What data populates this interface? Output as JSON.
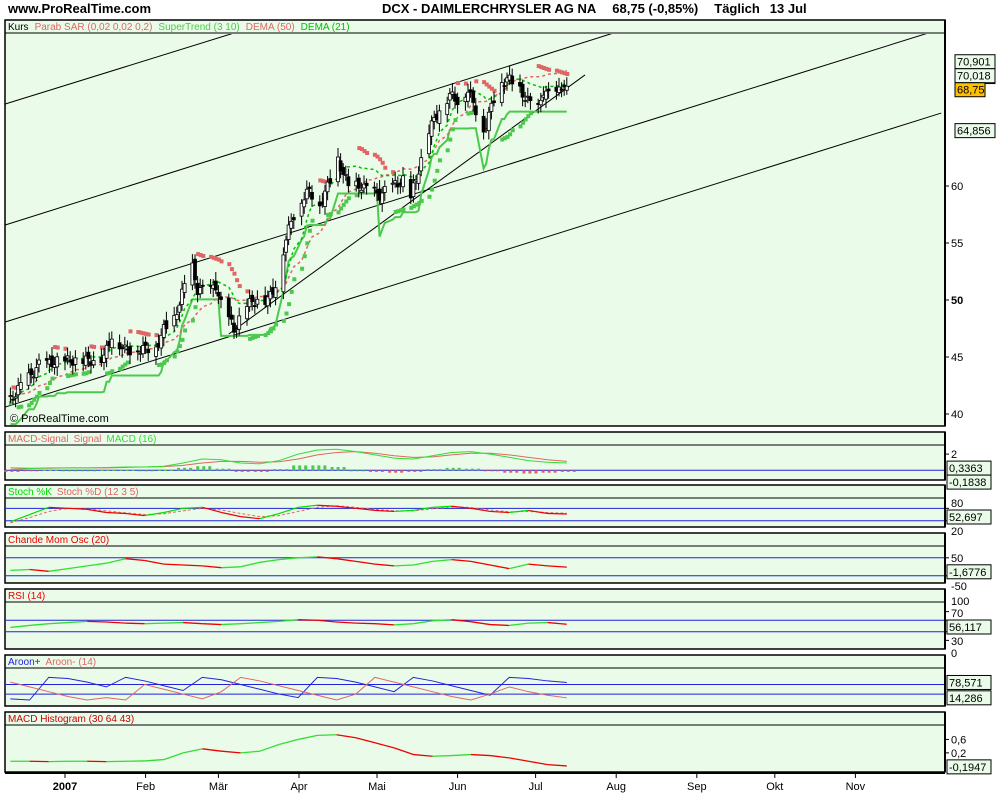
{
  "header": {
    "site": "www.ProRealTime.com",
    "title": "DCX - DAIMLERCHRYSLER AG NA",
    "quote": "68,75 (-0,85%)",
    "period": "Täglich",
    "date": "13 Jul"
  },
  "watermark": "© ProRealTime.com",
  "colors": {
    "panel_bg": "#eafbe9",
    "green": "#4cc94c",
    "dema21": "#00c000",
    "red": "#e06666",
    "blue": "#2222dd",
    "last_price_bg": "#ffc000"
  },
  "main_panel": {
    "legend": [
      {
        "text": "Kurs",
        "color": "#000000"
      },
      {
        "text": "Parab SAR (0,02 0,02 0,2)",
        "color": "#e06666"
      },
      {
        "text": "SuperTrend (3 10)",
        "color": "#4cc94c"
      },
      {
        "text": "DEMA (50)",
        "color": "#e06666"
      },
      {
        "text": "DEMA (21)",
        "color": "#00c000"
      }
    ],
    "y_ticks": [
      {
        "value": 60,
        "label": "60"
      },
      {
        "value": 55,
        "label": "55"
      },
      {
        "value": 50,
        "label": "50",
        "bold": true
      },
      {
        "value": 45,
        "label": "45"
      },
      {
        "value": 40,
        "label": "40"
      }
    ],
    "value_labels": [
      {
        "value": 70.901,
        "label": "70,901",
        "color": "#e06666"
      },
      {
        "value": 70.018,
        "label": "70,018",
        "color": "#e06666"
      },
      {
        "value": 69.6,
        "label": "",
        "color": "#00c000"
      },
      {
        "value": 68.75,
        "label": "68,75",
        "color": "#000000",
        "highlight": true
      },
      {
        "value": 64.856,
        "label": "64,856",
        "color": "#4cc94c"
      }
    ]
  },
  "x_axis": {
    "ticks": [
      {
        "date": "2007-01-01",
        "label": "2007",
        "bold": true
      },
      {
        "date": "2007-02-01",
        "label": "Feb"
      },
      {
        "date": "2007-03-01",
        "label": "Mär"
      },
      {
        "date": "2007-04-01",
        "label": "Apr"
      },
      {
        "date": "2007-05-01",
        "label": "Mai"
      },
      {
        "date": "2007-06-01",
        "label": "Jun"
      },
      {
        "date": "2007-07-01",
        "label": "Jul"
      },
      {
        "date": "2007-08-01",
        "label": "Aug"
      },
      {
        "date": "2007-09-01",
        "label": "Sep"
      },
      {
        "date": "2007-10-01",
        "label": "Okt"
      },
      {
        "date": "2007-11-01",
        "label": "Nov"
      }
    ]
  },
  "chart_data": [
    {
      "type": "candlestick",
      "name": "Kurs",
      "ylim": [
        39,
        73.5
      ],
      "xlim": [
        "2006-12-09",
        "2007-12-04"
      ],
      "grid": false,
      "close": [
        [
          "2006-12-11",
          41.2
        ],
        [
          "2006-12-15",
          42.5
        ],
        [
          "2006-12-19",
          43.4
        ],
        [
          "2006-12-22",
          44.3
        ],
        [
          "2006-12-29",
          44.6
        ],
        [
          "2007-01-05",
          44.7
        ],
        [
          "2007-01-11",
          44.7
        ],
        [
          "2007-01-16",
          45.0
        ],
        [
          "2007-01-19",
          46.9
        ],
        [
          "2007-01-24",
          45.6
        ],
        [
          "2007-01-30",
          45.7
        ],
        [
          "2007-02-05",
          45.8
        ],
        [
          "2007-02-08",
          47.4
        ],
        [
          "2007-02-12",
          48.3
        ],
        [
          "2007-02-16",
          51.3
        ],
        [
          "2007-02-19",
          52.8
        ],
        [
          "2007-02-21",
          50.9
        ],
        [
          "2007-02-26",
          50.9
        ],
        [
          "2007-02-28",
          51.3
        ],
        [
          "2007-03-02",
          49.6
        ],
        [
          "2007-03-05",
          48.4
        ],
        [
          "2007-03-07",
          47.4
        ],
        [
          "2007-03-12",
          49.6
        ],
        [
          "2007-03-16",
          50.0
        ],
        [
          "2007-03-20",
          50.0
        ],
        [
          "2007-03-23",
          51.3
        ],
        [
          "2007-03-26",
          54.4
        ],
        [
          "2007-03-29",
          57.0
        ],
        [
          "2007-04-02",
          58.8
        ],
        [
          "2007-04-05",
          59.6
        ],
        [
          "2007-04-09",
          58.3
        ],
        [
          "2007-04-13",
          60.5
        ],
        [
          "2007-04-16",
          62.3
        ],
        [
          "2007-04-20",
          60.0
        ],
        [
          "2007-04-25",
          60.0
        ],
        [
          "2007-04-28",
          59.6
        ],
        [
          "2007-05-02",
          59.2
        ],
        [
          "2007-05-07",
          60.0
        ],
        [
          "2007-05-11",
          60.5
        ],
        [
          "2007-05-14",
          59.0
        ],
        [
          "2007-05-18",
          62.3
        ],
        [
          "2007-05-21",
          64.9
        ],
        [
          "2007-05-25",
          66.7
        ],
        [
          "2007-05-29",
          68.0
        ],
        [
          "2007-06-01",
          67.5
        ],
        [
          "2007-06-05",
          68.4
        ],
        [
          "2007-06-08",
          66.7
        ],
        [
          "2007-06-11",
          64.9
        ],
        [
          "2007-06-13",
          66.2
        ],
        [
          "2007-06-16",
          68.4
        ],
        [
          "2007-06-20",
          69.5
        ],
        [
          "2007-06-25",
          68.4
        ],
        [
          "2007-06-28",
          67.5
        ],
        [
          "2007-07-02",
          66.7
        ],
        [
          "2007-07-04",
          68.4
        ],
        [
          "2007-07-08",
          67.5
        ],
        [
          "2007-07-11",
          68.9
        ],
        [
          "2007-07-13",
          68.75
        ]
      ],
      "trendlines": [
        {
          "from": [
            "2006-12-09",
            67.19
          ],
          "to": [
            "2007-03-07",
            73.42
          ]
        },
        {
          "from": [
            "2006-12-09",
            56.58
          ],
          "to": [
            "2007-07-31",
            73.42
          ]
        },
        {
          "from": [
            "2006-12-09",
            48.07
          ],
          "to": [
            "2007-11-29",
            73.42
          ]
        },
        {
          "from": [
            "2006-12-09",
            40.61
          ],
          "to": [
            "2007-12-04",
            66.4
          ]
        },
        {
          "from": [
            "2007-03-05",
            47.02
          ],
          "to": [
            "2007-07-20",
            69.74
          ]
        }
      ]
    },
    {
      "type": "line",
      "panel": "macd",
      "legend": [
        {
          "text": "MACD-Signal",
          "color": "#e06666"
        },
        {
          "text": "Signal",
          "color": "#e06666"
        },
        {
          "text": "MACD (16)",
          "color": "#33dd33"
        }
      ],
      "y_ticks": [
        {
          "value": 2,
          "label": "2"
        }
      ],
      "value_labels": [
        {
          "value": 0.3,
          "label": "0,3363",
          "color": "#e06666"
        },
        {
          "value": -0.1838,
          "label": "-0,1838",
          "color": "#e06666"
        }
      ],
      "series": [
        {
          "name": "MACD (16)",
          "values": [
            0.1,
            0.2,
            0.3,
            0.3,
            0.3,
            0.35,
            0.4,
            0.4,
            0.5,
            0.9,
            1.4,
            1.3,
            0.9,
            0.8,
            1.2,
            2.0,
            2.5,
            2.6,
            2.3,
            1.9,
            1.5,
            1.4,
            1.8,
            2.2,
            2.3,
            2.0,
            1.6,
            1.2,
            1.0,
            0.9
          ]
        },
        {
          "name": "Signal",
          "values": [
            0.3,
            0.25,
            0.25,
            0.3,
            0.3,
            0.3,
            0.35,
            0.4,
            0.45,
            0.6,
            0.9,
            1.1,
            1.1,
            1.0,
            1.05,
            1.4,
            1.9,
            2.2,
            2.3,
            2.1,
            1.8,
            1.6,
            1.65,
            1.9,
            2.1,
            2.1,
            1.9,
            1.6,
            1.3,
            1.1
          ]
        }
      ]
    },
    {
      "type": "line",
      "panel": "stoch",
      "legend": [
        {
          "text": "Stoch %K",
          "color": "#00dd00"
        },
        {
          "text": "Stoch %D (12 3 5)",
          "color": "#e06666"
        }
      ],
      "levels": [
        80,
        20
      ],
      "y_ticks": [
        {
          "value": 80,
          "label": "80"
        },
        {
          "value": 20,
          "label": "20"
        }
      ],
      "value_labels": [
        {
          "value": 52.697,
          "label": "52,697",
          "color": "#00dd00"
        }
      ],
      "series": [
        {
          "name": "Stoch %K",
          "values": [
            15,
            50,
            85,
            80,
            75,
            60,
            55,
            45,
            60,
            80,
            85,
            60,
            40,
            30,
            55,
            85,
            95,
            90,
            80,
            70,
            65,
            70,
            85,
            90,
            80,
            65,
            60,
            70,
            55,
            52.7
          ]
        },
        {
          "name": "Stoch %D",
          "values": [
            10,
            35,
            65,
            80,
            78,
            68,
            58,
            50,
            54,
            68,
            80,
            72,
            55,
            40,
            45,
            65,
            85,
            92,
            85,
            75,
            68,
            68,
            78,
            87,
            84,
            72,
            63,
            65,
            60,
            56
          ]
        }
      ]
    },
    {
      "type": "line",
      "panel": "chande",
      "legend": [
        {
          "text": "Chande Mom Osc (20)",
          "color": "#ee0000"
        }
      ],
      "levels": [
        50,
        -50
      ],
      "y_ticks": [
        {
          "value": 50,
          "label": "50"
        },
        {
          "value": -50,
          "label": "-50"
        }
      ],
      "value_labels": [
        {
          "value": -1.6776,
          "label": "-1,6776",
          "color": "#ee0000"
        }
      ],
      "series": [
        {
          "name": "Chande Mom Osc (20)",
          "values": [
            -20,
            -15,
            -25,
            -10,
            5,
            20,
            45,
            35,
            15,
            10,
            5,
            -5,
            0,
            25,
            40,
            50,
            55,
            45,
            30,
            15,
            5,
            10,
            30,
            40,
            30,
            10,
            -10,
            15,
            5,
            -1.7
          ]
        }
      ]
    },
    {
      "type": "line",
      "panel": "rsi",
      "legend": [
        {
          "text": "RSI (14)",
          "color": "#ee0000"
        }
      ],
      "levels": [
        70,
        30
      ],
      "y_ticks": [
        {
          "value": 100,
          "label": "100"
        },
        {
          "value": 70,
          "label": "70"
        },
        {
          "value": 30,
          "label": "30"
        },
        {
          "value": 0,
          "label": "0"
        }
      ],
      "value_labels": [
        {
          "value": 56.117,
          "label": "56,117",
          "color": "#ee0000"
        }
      ],
      "series": [
        {
          "name": "RSI (14)",
          "values": [
            45,
            52,
            58,
            62,
            66,
            64,
            60,
            58,
            60,
            62,
            58,
            55,
            58,
            62,
            66,
            72,
            70,
            64,
            60,
            58,
            54,
            58,
            68,
            72,
            65,
            55,
            52,
            60,
            62,
            56.1
          ]
        }
      ]
    },
    {
      "type": "line",
      "panel": "aroon",
      "legend": [
        {
          "text": "Aroon+",
          "color": "#2222dd"
        },
        {
          "text": "Aroon- (14)",
          "color": "#e06666"
        }
      ],
      "levels": [
        70,
        30
      ],
      "value_labels": [
        {
          "value": 78.571,
          "label": "78,571",
          "color": "#2222dd"
        },
        {
          "value": 14.286,
          "label": "14,286",
          "color": "#e06666"
        }
      ],
      "series": [
        {
          "name": "Aroon+",
          "values": [
            10,
            5,
            100,
            95,
            80,
            60,
            100,
            85,
            65,
            45,
            100,
            90,
            70,
            50,
            30,
            15,
            100,
            95,
            80,
            60,
            40,
            100,
            85,
            65,
            45,
            25,
            100,
            95,
            85,
            78.6
          ]
        },
        {
          "name": "Aroon-",
          "values": [
            80,
            60,
            40,
            20,
            5,
            15,
            5,
            70,
            50,
            30,
            10,
            40,
            100,
            85,
            65,
            45,
            25,
            5,
            30,
            100,
            80,
            60,
            40,
            20,
            5,
            30,
            60,
            40,
            25,
            14.3
          ]
        }
      ]
    },
    {
      "type": "line",
      "panel": "macd_hist",
      "legend": [
        {
          "text": "MACD Histogram (30 64 43)",
          "color": "#cc0000"
        }
      ],
      "y_ticks": [
        {
          "value": 0.6,
          "label": "0,6"
        },
        {
          "value": 0.2,
          "label": "0,2"
        }
      ],
      "value_labels": [
        {
          "value": -0.1947,
          "label": "-0,1947",
          "color": "#cc0000"
        }
      ],
      "series": [
        {
          "name": "MACD Histogram (30 64 43)",
          "values": [
            -0.05,
            -0.05,
            -0.06,
            -0.05,
            -0.05,
            -0.06,
            -0.05,
            -0.04,
            0.0,
            0.2,
            0.32,
            0.25,
            0.2,
            0.25,
            0.45,
            0.6,
            0.72,
            0.74,
            0.65,
            0.5,
            0.35,
            0.15,
            0.1,
            0.12,
            0.15,
            0.12,
            0.05,
            -0.05,
            -0.15,
            -0.19
          ]
        }
      ]
    }
  ]
}
